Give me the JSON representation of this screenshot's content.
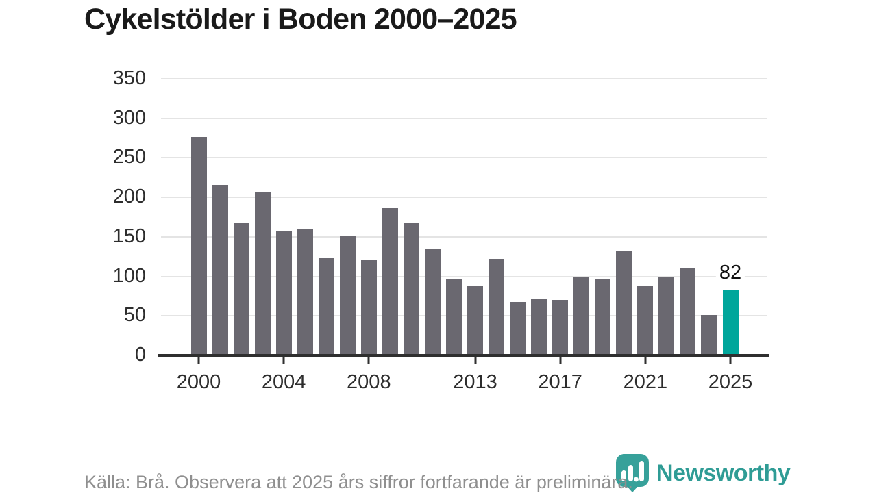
{
  "title": "Cykelstölder i Boden 2000–2025",
  "footer": {
    "source_note": "Källa: Brå. Observera att 2025 års siffror fortfarande är preliminära."
  },
  "logo": {
    "text": "Newsworthy",
    "color": "#2F9C95",
    "icon": "newsworthy-bubble-chart-icon"
  },
  "chart_data": {
    "type": "bar",
    "title": "Cykelstölder i Boden 2000–2025",
    "categories": [
      2000,
      2001,
      2002,
      2003,
      2004,
      2005,
      2006,
      2007,
      2008,
      2009,
      2010,
      2011,
      2012,
      2013,
      2014,
      2015,
      2016,
      2017,
      2018,
      2019,
      2020,
      2021,
      2022,
      2023,
      2024,
      2025
    ],
    "values": [
      276,
      216,
      167,
      206,
      158,
      160,
      123,
      151,
      120,
      186,
      168,
      135,
      97,
      88,
      122,
      68,
      72,
      70,
      100,
      97,
      132,
      88,
      100,
      110,
      51,
      82
    ],
    "bar_color": "#6A6870",
    "highlight": {
      "index": 25,
      "color": "#00A69B",
      "label": "82"
    },
    "xlabel": "",
    "ylabel": "",
    "ylim": [
      0,
      350
    ],
    "y_ticks": [
      0,
      50,
      100,
      150,
      200,
      250,
      300,
      350
    ],
    "x_tick_years": [
      2000,
      2004,
      2008,
      2013,
      2017,
      2021,
      2025
    ],
    "grid": true,
    "grid_color": "#E4E4E4",
    "axis_color": "#2F2F2F",
    "legend_position": "none"
  }
}
